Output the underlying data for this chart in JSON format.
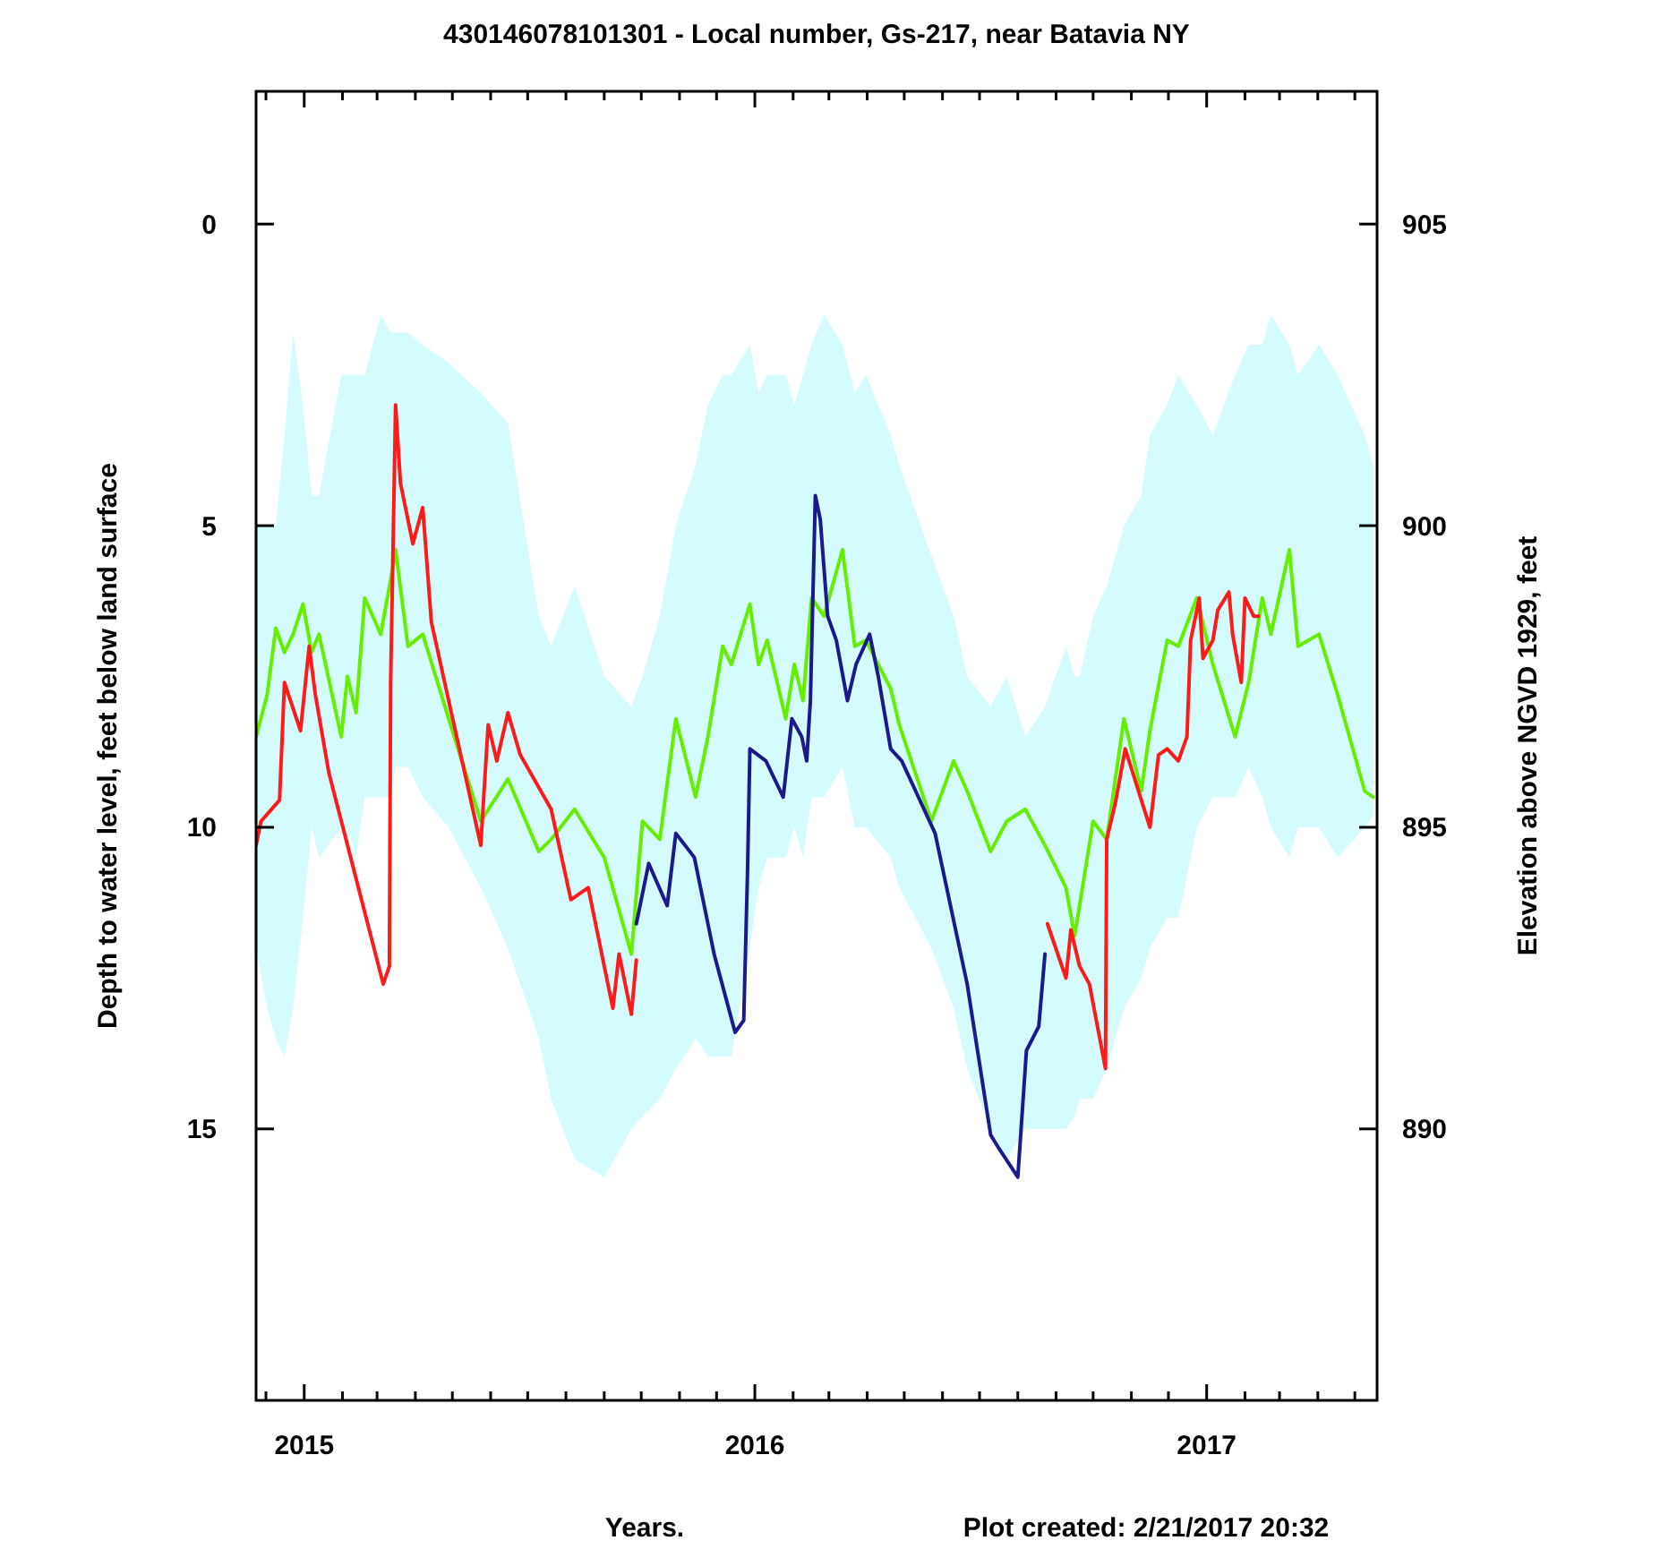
{
  "chart_data": {
    "type": "line",
    "title": "430146078101301 - Local number, Gs-217, near Batavia NY",
    "xlabel": "Years.",
    "ylabel": "Depth to water level, feet below land surface",
    "y2label": "Elevation above NGVD 1929, feet",
    "annotations": [
      "Plot created: 2/21/2017 20:32"
    ],
    "xlim": [
      "2014-11-23",
      "2017-05-19"
    ],
    "xticks": [
      {
        "value": "2014-12-01",
        "label": null
      },
      {
        "value": "2015-01-01",
        "label": "2015"
      },
      {
        "value": "2015-02-01",
        "label": null
      },
      {
        "value": "2015-03-01",
        "label": null
      },
      {
        "value": "2015-04-01",
        "label": null
      },
      {
        "value": "2015-05-01",
        "label": null
      },
      {
        "value": "2015-06-01",
        "label": null
      },
      {
        "value": "2015-07-01",
        "label": null
      },
      {
        "value": "2015-08-01",
        "label": null
      },
      {
        "value": "2015-09-01",
        "label": null
      },
      {
        "value": "2015-10-01",
        "label": null
      },
      {
        "value": "2015-11-01",
        "label": null
      },
      {
        "value": "2015-12-01",
        "label": null
      },
      {
        "value": "2016-01-01",
        "label": "2016"
      },
      {
        "value": "2016-02-01",
        "label": null
      },
      {
        "value": "2016-03-01",
        "label": null
      },
      {
        "value": "2016-04-01",
        "label": null
      },
      {
        "value": "2016-05-01",
        "label": null
      },
      {
        "value": "2016-06-01",
        "label": null
      },
      {
        "value": "2016-07-01",
        "label": null
      },
      {
        "value": "2016-08-01",
        "label": null
      },
      {
        "value": "2016-09-01",
        "label": null
      },
      {
        "value": "2016-10-01",
        "label": null
      },
      {
        "value": "2016-11-01",
        "label": null
      },
      {
        "value": "2016-12-01",
        "label": null
      },
      {
        "value": "2017-01-01",
        "label": "2017"
      },
      {
        "value": "2017-02-01",
        "label": null
      },
      {
        "value": "2017-03-01",
        "label": null
      },
      {
        "value": "2017-04-01",
        "label": null
      },
      {
        "value": "2017-05-01",
        "label": null
      }
    ],
    "ylim": [
      19.5,
      -2.2
    ],
    "yticks": [
      0,
      5,
      10,
      15
    ],
    "y2lim": [
      885.5,
      907.2
    ],
    "y2ticks": [
      905,
      900,
      895,
      890
    ],
    "grid": false,
    "marker": "none",
    "line_style": "solid",
    "series": [
      {
        "type": "area",
        "color": "#d4fbfd",
        "values": [
          null,
          null,
          null,
          null,
          null,
          null,
          null,
          null,
          null,
          null,
          null,
          null,
          null,
          null,
          null,
          null,
          null,
          null,
          null,
          null,
          null,
          null,
          null,
          null,
          null,
          null,
          null,
          null,
          null,
          null,
          null,
          null,
          null,
          null,
          null,
          null,
          null,
          null,
          null,
          null,
          null,
          null,
          null,
          null,
          null,
          null,
          null,
          null,
          null,
          null,
          null,
          null,
          null,
          null,
          null,
          null,
          null,
          null,
          null,
          null,
          null,
          null,
          null,
          null,
          null,
          null,
          null,
          null,
          null,
          null,
          null,
          null,
          null,
          null
        ],
        "x": [
          "2014-11-23",
          "2014-12-02",
          "2014-12-09",
          "2014-12-16",
          "2014-12-23",
          "2014-12-31",
          "2015-01-07",
          "2015-01-13",
          "2015-01-31",
          "2015-02-05",
          "2015-02-12",
          "2015-02-19",
          "2015-03-04",
          "2015-03-12",
          "2015-03-16",
          "2015-03-26",
          "2015-04-07",
          "2015-04-28",
          "2015-05-24",
          "2015-06-15",
          "2015-07-10",
          "2015-07-20",
          "2015-08-08",
          "2015-09-01",
          "2015-09-23",
          "2015-10-02",
          "2015-10-16",
          "2015-10-29",
          "2015-11-14",
          "2015-11-24",
          "2015-12-06",
          "2015-12-13",
          "2015-12-28",
          "2016-01-04",
          "2016-01-11",
          "2016-01-26",
          "2016-02-02",
          "2016-02-09",
          "2016-02-16",
          "2016-02-26",
          "2016-03-12",
          "2016-03-22",
          "2016-03-31",
          "2016-04-20",
          "2016-04-27",
          "2016-05-23",
          "2016-06-10",
          "2016-06-21",
          "2016-07-10",
          "2016-07-23",
          "2016-08-07",
          "2016-08-23",
          "2016-09-09",
          "2016-09-16",
          "2016-09-20",
          "2016-10-01",
          "2016-10-12",
          "2016-10-26",
          "2016-11-09",
          "2016-11-16",
          "2016-11-30",
          "2016-12-09",
          "2016-12-24",
          "2017-01-06",
          "2017-01-24",
          "2017-02-04",
          "2017-02-15",
          "2017-02-22",
          "2017-03-09",
          "2017-03-16",
          "2017-04-02",
          "2017-04-17",
          "2017-05-09",
          "2017-05-16"
        ],
        "upper": [
          5.0,
          5.0,
          5.0,
          3.5,
          1.8,
          3.0,
          4.5,
          4.5,
          2.5,
          2.5,
          2.5,
          2.5,
          1.5,
          1.8,
          1.8,
          1.8,
          2.0,
          2.3,
          2.8,
          3.3,
          6.5,
          7.0,
          6.0,
          7.5,
          8.0,
          7.5,
          6.5,
          5.0,
          4.0,
          3.0,
          2.5,
          2.5,
          2.0,
          2.8,
          2.5,
          2.5,
          3.0,
          2.5,
          2.0,
          1.5,
          2.0,
          2.8,
          2.5,
          3.5,
          4.0,
          5.5,
          6.5,
          7.5,
          8.0,
          7.5,
          8.5,
          8.0,
          7.0,
          7.5,
          7.5,
          6.5,
          6.0,
          5.0,
          4.5,
          3.5,
          3.0,
          2.5,
          3.0,
          3.5,
          2.5,
          2.0,
          2.0,
          1.5,
          2.0,
          2.5,
          2.0,
          2.5,
          3.5,
          4.0
        ],
        "lower": [
          12.0,
          13.0,
          13.5,
          13.8,
          13.0,
          11.5,
          10.0,
          10.5,
          10.0,
          10.0,
          10.5,
          9.5,
          9.5,
          9.5,
          9.0,
          9.0,
          9.5,
          10.0,
          11.0,
          12.0,
          13.5,
          14.5,
          15.5,
          15.8,
          15.0,
          14.8,
          14.5,
          14.0,
          13.5,
          13.8,
          13.8,
          13.8,
          12.0,
          11.0,
          10.5,
          10.5,
          10.0,
          10.5,
          9.5,
          9.5,
          9.0,
          10.0,
          10.0,
          10.5,
          11.0,
          12.0,
          13.0,
          14.0,
          15.0,
          15.5,
          15.0,
          15.0,
          15.0,
          14.8,
          14.5,
          14.5,
          14.0,
          13.0,
          12.5,
          12.0,
          11.5,
          11.5,
          10.0,
          9.5,
          9.5,
          9.0,
          9.5,
          10.0,
          10.5,
          10.0,
          10.0,
          10.5,
          10.0,
          9.8
        ]
      },
      {
        "color": "#66ee00",
        "x": [
          "2014-11-23",
          "2014-12-02",
          "2014-12-09",
          "2014-12-16",
          "2014-12-23",
          "2014-12-31",
          "2015-01-07",
          "2015-01-13",
          "2015-01-31",
          "2015-02-05",
          "2015-02-12",
          "2015-02-19",
          "2015-03-04",
          "2015-03-12",
          "2015-03-16",
          "2015-03-26",
          "2015-04-07",
          "2015-04-28",
          "2015-05-24",
          "2015-06-15",
          "2015-07-10",
          "2015-07-20",
          "2015-08-08",
          "2015-09-01",
          "2015-09-23",
          "2015-10-02",
          "2015-10-16",
          "2015-10-29",
          "2015-11-14",
          "2015-11-24",
          "2015-12-06",
          "2015-12-13",
          "2015-12-28",
          "2016-01-04",
          "2016-01-11",
          "2016-01-26",
          "2016-02-02",
          "2016-02-09",
          "2016-02-16",
          "2016-02-26",
          "2016-03-12",
          "2016-03-22",
          "2016-03-31",
          "2016-04-20",
          "2016-04-27",
          "2016-05-23",
          "2016-06-10",
          "2016-06-21",
          "2016-07-10",
          "2016-07-23",
          "2016-08-07",
          "2016-08-23",
          "2016-09-09",
          "2016-09-16",
          "2016-09-20",
          "2016-10-01",
          "2016-10-12",
          "2016-10-26",
          "2016-11-09",
          "2016-11-16",
          "2016-11-30",
          "2016-12-09",
          "2016-12-24",
          "2017-01-06",
          "2017-01-24",
          "2017-02-04",
          "2017-02-15",
          "2017-02-22",
          "2017-03-09",
          "2017-03-16",
          "2017-04-02",
          "2017-04-17",
          "2017-05-09",
          "2017-05-16"
        ],
        "values": [
          8.5,
          7.8,
          6.7,
          7.1,
          6.8,
          6.3,
          7.1,
          6.8,
          8.5,
          7.5,
          8.1,
          6.2,
          6.8,
          5.9,
          5.4,
          7.0,
          6.8,
          8.2,
          9.9,
          9.2,
          10.4,
          10.2,
          9.7,
          10.5,
          12.1,
          9.9,
          10.2,
          8.2,
          9.5,
          8.5,
          7.0,
          7.3,
          6.3,
          7.3,
          6.9,
          8.2,
          7.3,
          7.9,
          6.2,
          6.5,
          5.4,
          7.0,
          6.9,
          7.7,
          8.3,
          9.9,
          8.9,
          9.4,
          10.4,
          9.9,
          9.7,
          10.3,
          11.0,
          11.8,
          11.3,
          9.9,
          10.2,
          8.2,
          9.4,
          8.4,
          6.9,
          7.0,
          6.2,
          7.3,
          8.5,
          7.6,
          6.2,
          6.8,
          5.4,
          7.0,
          6.8,
          7.8,
          9.4,
          9.5
        ]
      },
      {
        "color": "#ff1a1a",
        "x": [
          "2014-11-23",
          "2014-11-27",
          "2014-12-12",
          "2014-12-16",
          "2014-12-29",
          "2015-01-05",
          "2015-01-10",
          "2015-01-21",
          "2015-03-06",
          "2015-03-11",
          "2015-03-12",
          "2015-03-16",
          "2015-03-20",
          "2015-03-30",
          "2015-04-07",
          "2015-04-14",
          "2015-04-28",
          "2015-05-24",
          "2015-05-30",
          "2015-06-06",
          "2015-06-15",
          "2015-06-25",
          "2015-07-20",
          "2015-08-05",
          "2015-08-19",
          "2015-09-08",
          "2015-09-13",
          "2015-09-23",
          "2015-09-27"
        ],
        "values": [
          10.3,
          9.9,
          9.55,
          7.6,
          8.4,
          7.0,
          7.8,
          9.1,
          12.6,
          12.3,
          7.6,
          3.0,
          4.3,
          5.3,
          4.7,
          6.6,
          7.9,
          10.3,
          8.3,
          8.9,
          8.1,
          8.8,
          9.7,
          11.2,
          11.0,
          13.0,
          12.1,
          13.1,
          12.2
        ]
      },
      {
        "color": "#1a1a8c",
        "x": [
          "2015-09-27",
          "2015-10-07",
          "2015-10-22",
          "2015-10-29",
          "2015-11-13",
          "2015-11-29",
          "2015-12-16",
          "2015-12-23",
          "2015-12-26",
          "2015-12-28",
          "2016-01-10",
          "2016-01-24",
          "2016-01-31",
          "2016-02-08",
          "2016-02-12",
          "2016-02-15",
          "2016-02-19",
          "2016-02-23",
          "2016-02-29",
          "2016-03-07",
          "2016-03-16",
          "2016-03-23",
          "2016-04-03",
          "2016-04-10",
          "2016-04-20",
          "2016-04-29",
          "2016-05-26",
          "2016-06-21",
          "2016-07-10",
          "2016-07-16",
          "2016-08-01",
          "2016-08-08",
          "2016-08-18",
          "2016-08-23"
        ],
        "values": [
          11.6,
          10.6,
          11.3,
          10.1,
          10.5,
          12.1,
          13.4,
          13.2,
          10.8,
          8.7,
          8.9,
          9.5,
          8.2,
          8.5,
          8.9,
          7.9,
          4.5,
          4.9,
          6.5,
          6.9,
          7.9,
          7.3,
          6.8,
          7.5,
          8.7,
          8.9,
          10.1,
          12.6,
          15.1,
          15.3,
          15.8,
          13.7,
          13.3,
          12.1
        ]
      },
      {
        "color": "#ff1a1a",
        "x": [
          "2016-08-25",
          "2016-09-09",
          "2016-09-13",
          "2016-09-20",
          "2016-09-28",
          "2016-10-11",
          "2016-10-12",
          "2016-10-19",
          "2016-10-27",
          "2016-11-16",
          "2016-11-23",
          "2016-11-30",
          "2016-12-09",
          "2016-12-16",
          "2016-12-19",
          "2016-12-26",
          "2016-12-29",
          "2017-01-06",
          "2017-01-10",
          "2017-01-19",
          "2017-01-22",
          "2017-01-29",
          "2017-02-01",
          "2017-02-08",
          "2017-02-12"
        ],
        "values": [
          11.6,
          12.5,
          11.7,
          12.3,
          12.6,
          14.0,
          10.2,
          9.6,
          8.7,
          10.0,
          8.8,
          8.7,
          8.9,
          8.5,
          6.9,
          6.2,
          7.2,
          6.9,
          6.4,
          6.1,
          6.8,
          7.6,
          6.2,
          6.5,
          6.5
        ]
      }
    ]
  }
}
